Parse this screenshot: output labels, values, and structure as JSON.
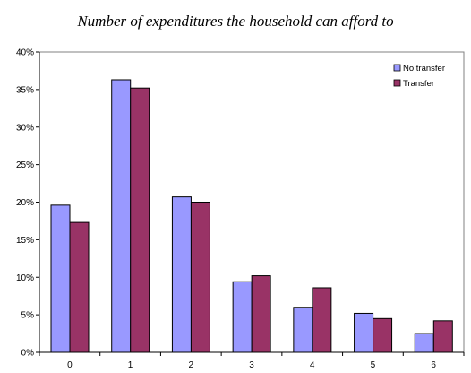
{
  "chart_data": {
    "type": "bar",
    "title": "Number of expenditures the household can afford to",
    "xlabel": "",
    "ylabel": "",
    "categories": [
      "0",
      "1",
      "2",
      "3",
      "4",
      "5",
      "6"
    ],
    "ylim": [
      0,
      40
    ],
    "yticks": [
      "0%",
      "5%",
      "10%",
      "15%",
      "20%",
      "25%",
      "30%",
      "35%",
      "40%"
    ],
    "grid": false,
    "legend": "top-right",
    "series": [
      {
        "name": "No transfer",
        "color": "#9999ff",
        "values": [
          19.6,
          36.3,
          20.7,
          9.4,
          6.0,
          5.2,
          2.5
        ]
      },
      {
        "name": "Transfer",
        "color": "#993366",
        "values": [
          17.3,
          35.2,
          20.0,
          10.2,
          8.6,
          4.5,
          4.2
        ]
      }
    ]
  }
}
